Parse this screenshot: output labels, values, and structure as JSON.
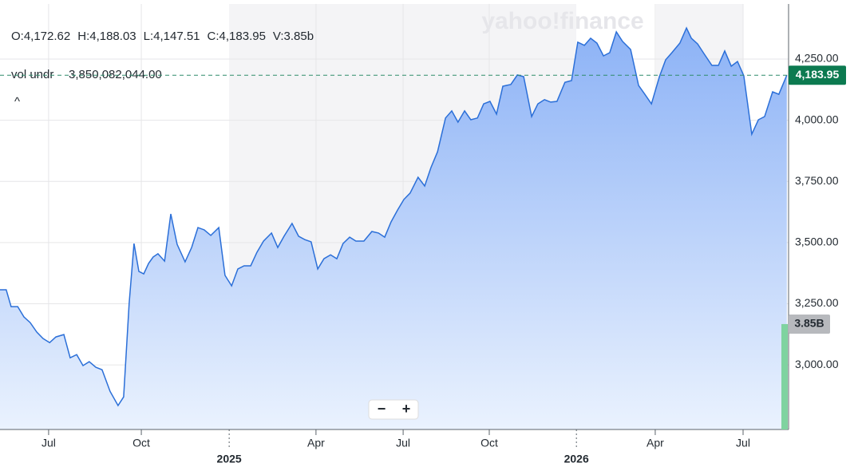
{
  "chart_data": {
    "type": "area",
    "color": "#2b6fd8",
    "grid": true,
    "watermark": "yahoo!finance",
    "ohlc": [
      "O:4,172.62",
      "H:4,188.03",
      "L:4,147.51",
      "C:4,183.95",
      "V:3.85b"
    ],
    "volume_caption": "vol undr",
    "volume_text": "3,850,082,044.00",
    "collapse": "^",
    "zoom": [
      "−",
      "+"
    ],
    "last": {
      "value": 4183.95,
      "label": "4,183.95"
    },
    "volume": {
      "value": 3850082044,
      "label": "3.85B",
      "color": "#7fd3a0"
    },
    "xlim": [
      2024.34,
      2026.611
    ],
    "ylim": [
      2736,
      4475
    ],
    "xticks": [
      {
        "value": 2024.48,
        "label": "Jul"
      },
      {
        "value": 2024.747,
        "label": "Oct"
      },
      {
        "value": 2025.0,
        "label": "2025"
      },
      {
        "value": 2025.25,
        "label": "Apr"
      },
      {
        "value": 2025.501,
        "label": "Jul"
      },
      {
        "value": 2025.749,
        "label": "Oct"
      },
      {
        "value": 2026.0,
        "label": "2026"
      },
      {
        "value": 2026.227,
        "label": "Apr"
      },
      {
        "value": 2026.48,
        "label": "Jul"
      }
    ],
    "yticks": [
      {
        "value": 3000,
        "label": "3,000.00"
      },
      {
        "value": 3250,
        "label": "3,250.00"
      },
      {
        "value": 3500,
        "label": "3,500.00"
      },
      {
        "value": 3750,
        "label": "3,750.00"
      },
      {
        "value": 4000,
        "label": "4,000.00"
      },
      {
        "value": 4250,
        "label": "4,250.00"
      }
    ],
    "x": [
      2024.34,
      2024.358,
      2024.372,
      2024.391,
      2024.409,
      2024.427,
      2024.446,
      2024.464,
      2024.483,
      2024.501,
      2024.524,
      2024.542,
      2024.561,
      2024.579,
      2024.597,
      2024.616,
      2024.634,
      2024.657,
      2024.68,
      2024.696,
      2024.712,
      2024.726,
      2024.74,
      2024.754,
      2024.768,
      2024.781,
      2024.795,
      2024.814,
      2024.832,
      2024.85,
      2024.873,
      2024.892,
      2024.91,
      2024.928,
      2024.947,
      2024.97,
      2024.988,
      2025.007,
      2025.025,
      2025.043,
      2025.062,
      2025.08,
      2025.099,
      2025.122,
      2025.14,
      2025.158,
      2025.181,
      2025.2,
      2025.218,
      2025.236,
      2025.255,
      2025.273,
      2025.292,
      2025.31,
      2025.328,
      2025.347,
      2025.365,
      2025.388,
      2025.411,
      2025.43,
      2025.448,
      2025.466,
      2025.485,
      2025.503,
      2025.521,
      2025.544,
      2025.563,
      2025.581,
      2025.6,
      2025.623,
      2025.641,
      2025.659,
      2025.678,
      2025.696,
      2025.715,
      2025.733,
      2025.751,
      2025.77,
      2025.788,
      2025.811,
      2025.83,
      2025.848,
      2025.871,
      2025.889,
      2025.908,
      2025.926,
      2025.944,
      2025.967,
      2025.986,
      2026.004,
      2026.023,
      2026.041,
      2026.059,
      2026.078,
      2026.096,
      2026.115,
      2026.133,
      2026.156,
      2026.179,
      2026.197,
      2026.216,
      2026.239,
      2026.257,
      2026.275,
      2026.298,
      2026.317,
      2026.331,
      2026.349,
      2026.367,
      2026.39,
      2026.409,
      2026.427,
      2026.446,
      2026.464,
      2026.482,
      2026.505,
      2026.524,
      2026.542,
      2026.565,
      2026.583,
      2026.606
    ],
    "values": [
      3307,
      3307,
      3238,
      3238,
      3196,
      3173,
      3134,
      3108,
      3091,
      3114,
      3124,
      3029,
      3042,
      2997,
      3013,
      2990,
      2980,
      2892,
      2834,
      2869,
      3251,
      3496,
      3382,
      3372,
      3415,
      3441,
      3454,
      3424,
      3617,
      3493,
      3421,
      3480,
      3561,
      3552,
      3529,
      3561,
      3366,
      3323,
      3392,
      3405,
      3405,
      3460,
      3506,
      3539,
      3480,
      3526,
      3578,
      3526,
      3512,
      3503,
      3392,
      3434,
      3450,
      3434,
      3496,
      3522,
      3506,
      3506,
      3545,
      3539,
      3522,
      3584,
      3633,
      3676,
      3702,
      3767,
      3731,
      3806,
      3871,
      4009,
      4038,
      3992,
      4038,
      4002,
      4009,
      4067,
      4077,
      4025,
      4139,
      4146,
      4185,
      4178,
      4015,
      4067,
      4084,
      4074,
      4077,
      4155,
      4162,
      4319,
      4306,
      4335,
      4315,
      4263,
      4276,
      4361,
      4322,
      4289,
      4142,
      4106,
      4067,
      4178,
      4247,
      4276,
      4315,
      4377,
      4335,
      4312,
      4273,
      4224,
      4224,
      4283,
      4221,
      4240,
      4182,
      3943,
      4002,
      4015,
      4116,
      4106,
      4183.95
    ]
  }
}
